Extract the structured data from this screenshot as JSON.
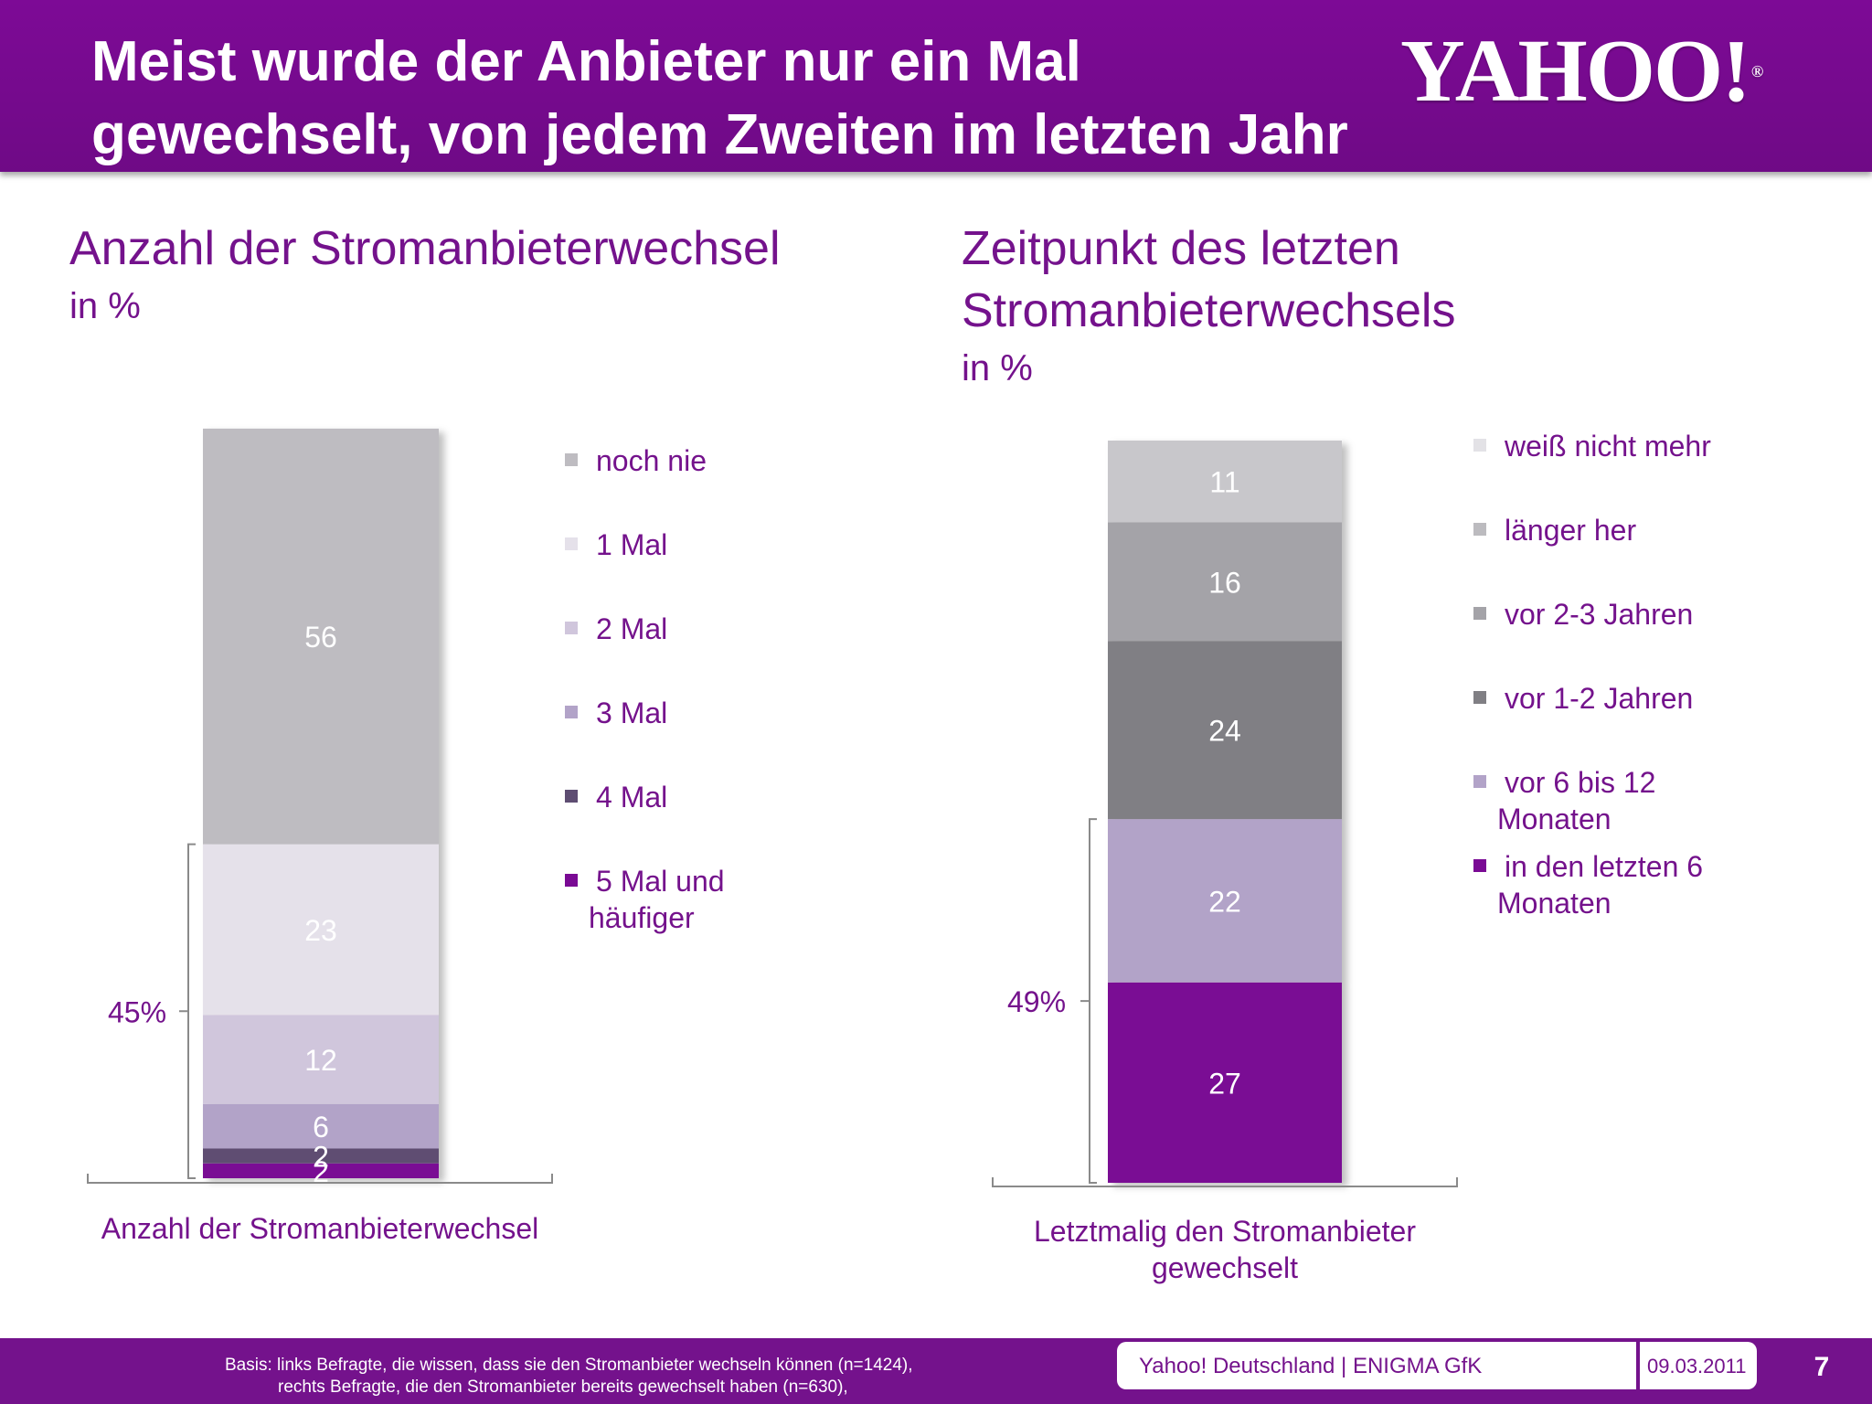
{
  "header": {
    "title_line1": "Meist wurde der Anbieter nur ein Mal",
    "title_line2": "gewechselt, von jedem Zweiten im letzten Jahr",
    "logo_text": "YAHOO!",
    "logo_reg": "®"
  },
  "left": {
    "title": "Anzahl der Stromanbieterwechsel",
    "unit": "in %",
    "xlabel": "Anzahl der Stromanbieterwechsel",
    "bracket_label": "45%"
  },
  "right": {
    "title_line1": "Zeitpunkt des letzten",
    "title_line2": "Stromanbieterwechsels",
    "unit": "in %",
    "xlabel_line1": "Letztmalig den Stromanbieter",
    "xlabel_line2": "gewechselt",
    "bracket_label": "49%"
  },
  "chart_data": [
    {
      "type": "bar",
      "stacked": true,
      "categories": [
        "Anzahl der Stromanbieterwechsel"
      ],
      "xlabel": "Anzahl der Stromanbieterwechsel",
      "ylim": [
        0,
        100
      ],
      "legend": "right",
      "grid": false,
      "bracket": {
        "label": "45%",
        "value": 45
      },
      "series": [
        {
          "name": "5 Mal und häufiger",
          "values": [
            2
          ],
          "color": "#7a0a94",
          "label_color": "#ffffff"
        },
        {
          "name": "4 Mal",
          "values": [
            2
          ],
          "color": "#5e4d72",
          "label_color": "#ffffff"
        },
        {
          "name": "3 Mal",
          "values": [
            6
          ],
          "color": "#b2a3c8",
          "label_color": "#ffffff"
        },
        {
          "name": "2 Mal",
          "values": [
            12
          ],
          "color": "#d0c6dc",
          "label_color": "#ffffff"
        },
        {
          "name": "1 Mal",
          "values": [
            23
          ],
          "color": "#e5e1ea",
          "label_color": "#ffffff"
        },
        {
          "name": "noch nie",
          "values": [
            56
          ],
          "color": "#bebcc1",
          "label_color": "#ffffff"
        }
      ],
      "legend_order": [
        {
          "text": [
            "noch nie"
          ],
          "color": "#bebcc1"
        },
        {
          "text": [
            "1 Mal"
          ],
          "color": "#e5e1ea"
        },
        {
          "text": [
            "2 Mal"
          ],
          "color": "#d0c6dc"
        },
        {
          "text": [
            "3 Mal"
          ],
          "color": "#b2a3c8"
        },
        {
          "text": [
            "4 Mal"
          ],
          "color": "#5e4d72"
        },
        {
          "text": [
            "5 Mal und",
            "häufiger"
          ],
          "color": "#7a0a94"
        }
      ]
    },
    {
      "type": "bar",
      "stacked": true,
      "categories": [
        "Letztmalig den Stromanbieter gewechselt"
      ],
      "xlabel": "Letztmalig den Stromanbieter gewechselt",
      "ylim": [
        0,
        100
      ],
      "legend": "right",
      "grid": false,
      "bracket": {
        "label": "49%",
        "value": 49
      },
      "series": [
        {
          "name": "in den letzten 6 Monaten",
          "values": [
            27
          ],
          "color": "#7a0a94",
          "label_color": "#ffffff"
        },
        {
          "name": "vor 6 bis 12 Monaten",
          "values": [
            22
          ],
          "color": "#b2a3c8",
          "label_color": "#ffffff"
        },
        {
          "name": "vor 1-2 Jahren",
          "values": [
            24
          ],
          "color": "#807f84",
          "label_color": "#ffffff"
        },
        {
          "name": "vor 2-3 Jahren",
          "values": [
            16
          ],
          "color": "#a4a3a8",
          "label_color": "#ffffff"
        },
        {
          "name": "länger her",
          "values": [
            0
          ],
          "color": "#bcbbbf",
          "label_color": "#ffffff"
        },
        {
          "name": "weiß nicht mehr",
          "values": [
            11
          ],
          "color": "#c8c7cb",
          "label_color": "#ffffff"
        }
      ],
      "legend_order": [
        {
          "text": [
            "weiß nicht mehr"
          ],
          "color": "#e3e2e6"
        },
        {
          "text": [
            "länger her"
          ],
          "color": "#bcbbbf"
        },
        {
          "text": [
            "vor 2-3 Jahren"
          ],
          "color": "#a4a3a8"
        },
        {
          "text": [
            "vor 1-2 Jahren"
          ],
          "color": "#807f84"
        },
        {
          "text": [
            "vor 6 bis 12",
            "Monaten"
          ],
          "color": "#b2a3c8"
        },
        {
          "text": [
            "in den letzten 6",
            "Monaten"
          ],
          "color": "#7a0a94"
        }
      ]
    }
  ],
  "footer": {
    "basis_line1": "Basis: links Befragte, die wissen, dass sie den Stromanbieter wechseln können (n=1424),",
    "basis_line2": "rechts Befragte, die den Stromanbieter bereits gewechselt haben (n=630),",
    "org": "Yahoo! Deutschland | ENIGMA GfK",
    "date": "09.03.2011",
    "page": "7"
  }
}
